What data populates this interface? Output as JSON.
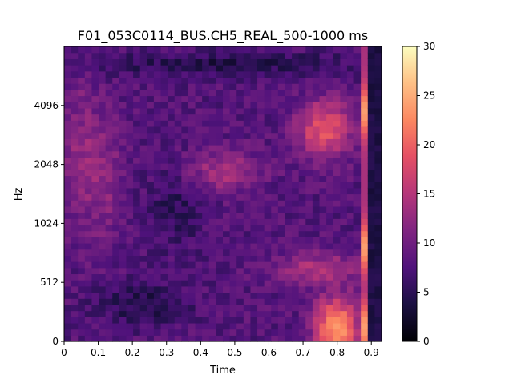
{
  "chart_data": {
    "type": "heatmap",
    "title": "F01_053C0114_BUS.CH5_REAL_500-1000 ms",
    "xlabel": "Time",
    "ylabel": "Hz",
    "xlim": [
      0,
      0.93
    ],
    "x_ticks": [
      "0",
      "0.1",
      "0.2",
      "0.3",
      "0.4",
      "0.5",
      "0.6",
      "0.7",
      "0.8",
      "0.9"
    ],
    "y_ticks": [
      "0",
      "512",
      "1024",
      "2048",
      "4096"
    ],
    "colorbar": {
      "colormap": "magma",
      "vmin": 0,
      "vmax": 30,
      "ticks": [
        "0",
        "5",
        "10",
        "15",
        "20",
        "25",
        "30"
      ]
    },
    "grid": false,
    "layout": {
      "time_bins": 46,
      "freq_bins": 48
    }
  }
}
